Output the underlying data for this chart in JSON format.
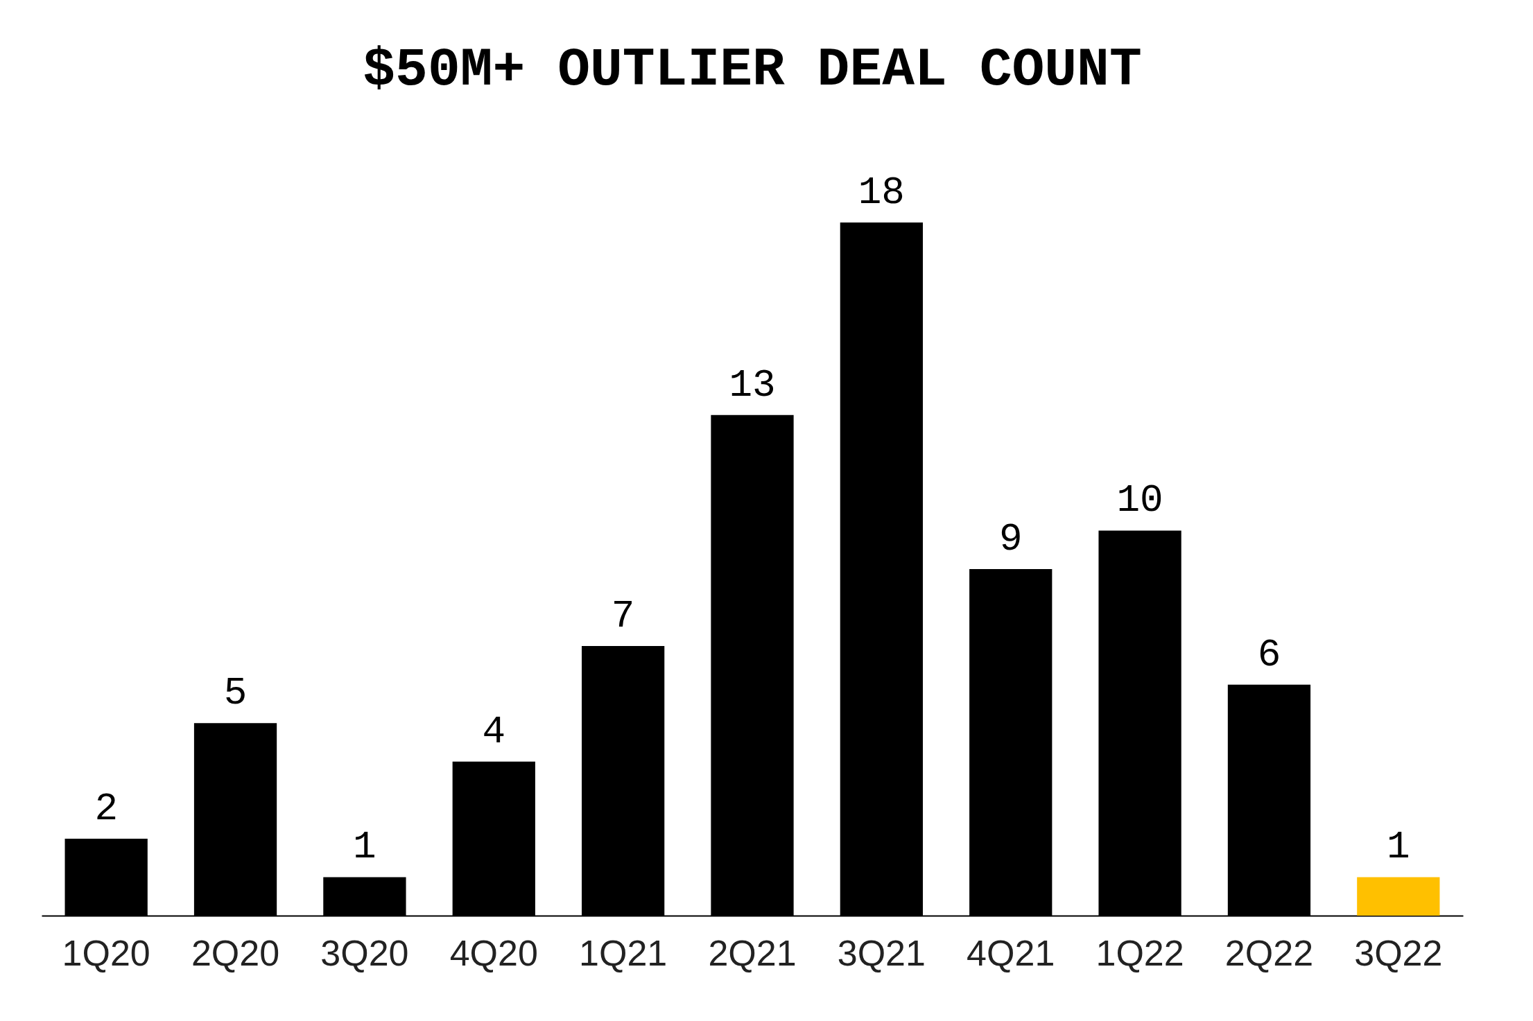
{
  "chart_data": {
    "type": "bar",
    "title": "$50M+ OUTLIER DEAL COUNT",
    "categories": [
      "1Q20",
      "2Q20",
      "3Q20",
      "4Q20",
      "1Q21",
      "2Q21",
      "3Q21",
      "4Q21",
      "1Q22",
      "2Q22",
      "3Q22"
    ],
    "values": [
      2,
      5,
      1,
      4,
      7,
      13,
      18,
      9,
      10,
      6,
      1
    ],
    "colors": [
      "#000000",
      "#000000",
      "#000000",
      "#000000",
      "#000000",
      "#000000",
      "#000000",
      "#000000",
      "#000000",
      "#000000",
      "#ffc000"
    ],
    "data_labels": true
  }
}
